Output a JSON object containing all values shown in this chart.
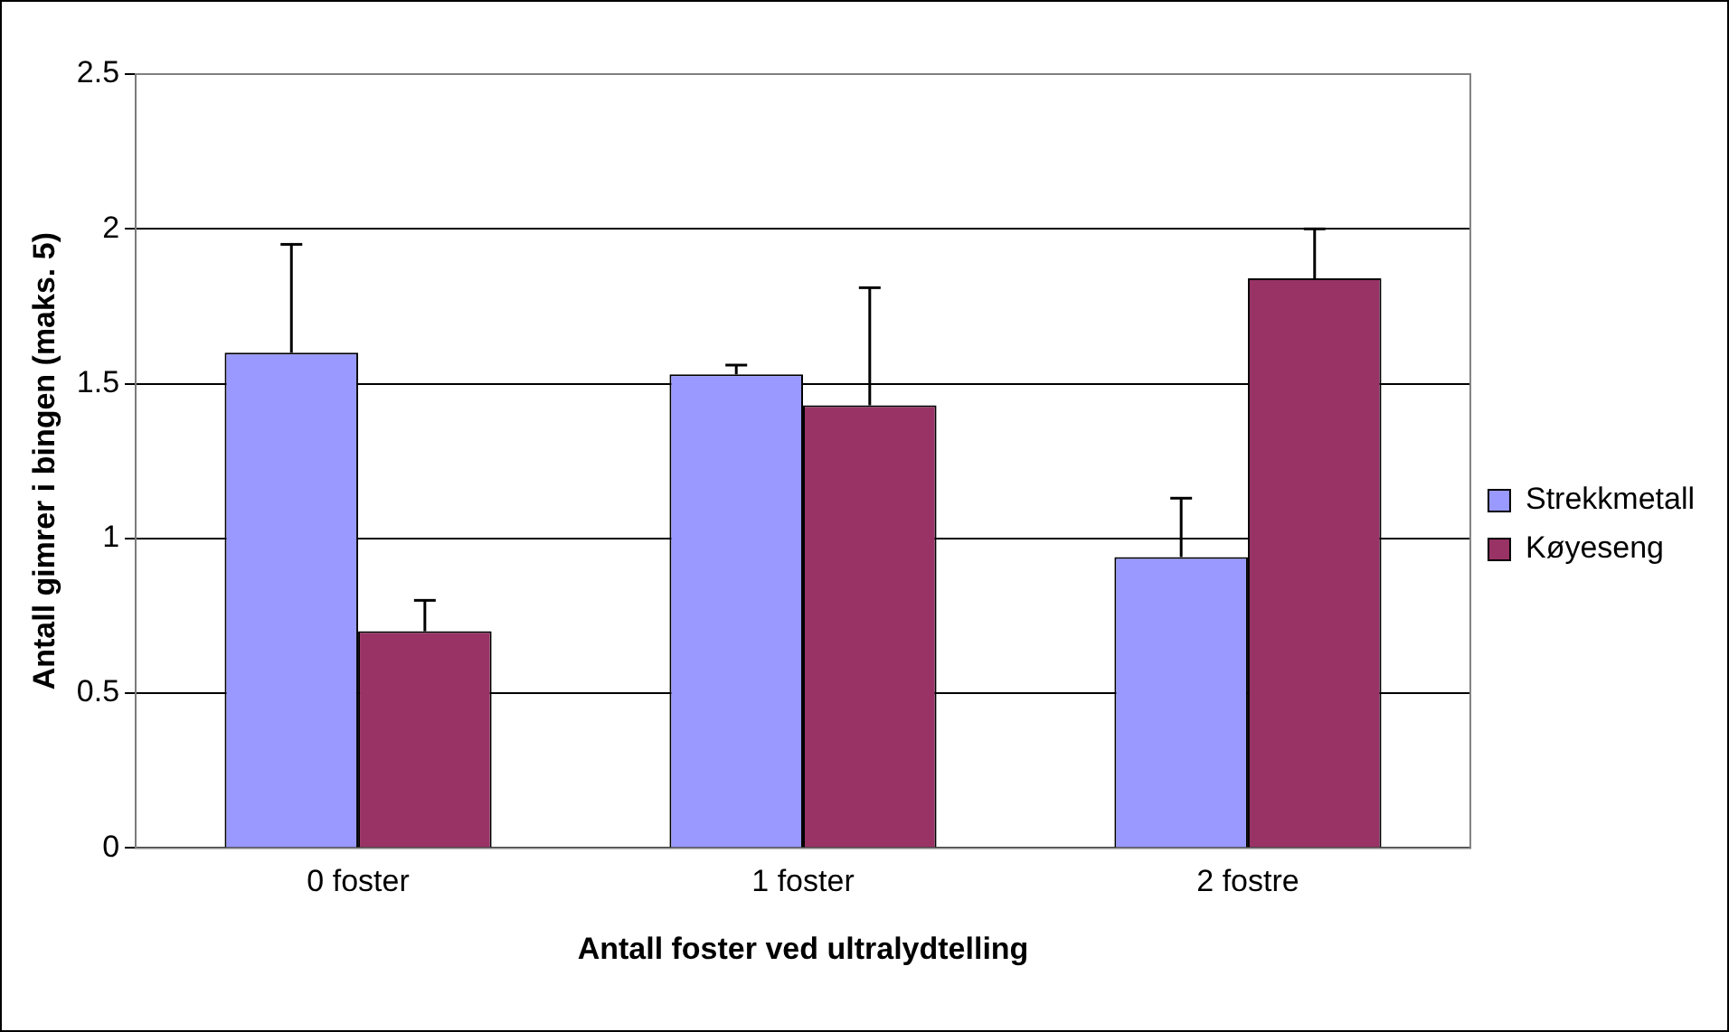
{
  "chart_data": {
    "type": "bar",
    "xlabel": "Antall foster ved ultralydtelling",
    "ylabel": "Antall gimrer i bingen (maks. 5)",
    "categories": [
      "0 foster",
      "1 foster",
      "2 fostre"
    ],
    "series": [
      {
        "name": "Strekkmetall",
        "color": "#9999ff",
        "values": [
          1.6,
          1.53,
          0.94
        ],
        "errors": [
          [
            1.6,
            1.95
          ],
          [
            1.53,
            1.56
          ],
          [
            0.94,
            1.13
          ]
        ]
      },
      {
        "name": "Køyeseng",
        "color": "#993366",
        "values": [
          0.7,
          1.43,
          1.84
        ],
        "errors": [
          [
            0.7,
            0.8
          ],
          [
            1.43,
            1.81
          ],
          [
            1.84,
            2
          ]
        ]
      }
    ],
    "ylim": [
      0,
      2.5
    ],
    "yticks": [
      0,
      0.5,
      1,
      1.5,
      2,
      2.5
    ],
    "grid": "y",
    "legend": "right"
  }
}
